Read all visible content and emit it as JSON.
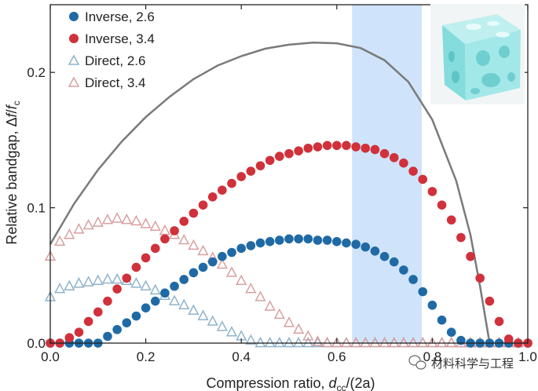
{
  "chart_data": {
    "type": "scatter",
    "xlabel_main": "Compression ratio, ",
    "xlabel_var": "d",
    "xlabel_sub": "cc",
    "xlabel_tail": "/(2a)",
    "ylabel_main": "Relative bandgap, Δ",
    "ylabel_var": "f",
    "ylabel_slash": "/",
    "ylabel_var2": "f",
    "ylabel_sub": "c",
    "xlim": [
      0,
      1.0
    ],
    "ylim": [
      0,
      0.25
    ],
    "x_ticks": [
      0.0,
      0.2,
      0.4,
      0.6,
      0.8,
      1.0
    ],
    "x_tick_labels": [
      "0.0",
      "0.2",
      "0.4",
      "0.6",
      "0.8",
      "1.0"
    ],
    "y_ticks": [
      0.0,
      0.1,
      0.2
    ],
    "y_tick_labels": [
      "0.0",
      "0.1",
      "0.2"
    ],
    "highlight_band": [
      0.632,
      0.778
    ],
    "legend_position": "top-left",
    "series": [
      {
        "name": "Inverse, 2.6",
        "marker": "circle",
        "filled": true,
        "color": "#1f6aa5",
        "x": [
          0.0,
          0.02,
          0.04,
          0.06,
          0.08,
          0.1,
          0.12,
          0.14,
          0.16,
          0.18,
          0.2,
          0.22,
          0.24,
          0.26,
          0.28,
          0.3,
          0.32,
          0.34,
          0.36,
          0.38,
          0.4,
          0.42,
          0.44,
          0.46,
          0.48,
          0.5,
          0.52,
          0.54,
          0.56,
          0.58,
          0.6,
          0.62,
          0.64,
          0.66,
          0.68,
          0.7,
          0.72,
          0.74,
          0.76,
          0.78,
          0.8,
          0.82,
          0.84,
          0.86,
          0.88,
          0.9,
          0.92,
          0.94,
          0.96,
          0.98,
          1.0
        ],
        "y": [
          0.0,
          0.0,
          0.0,
          0.0,
          0.0,
          0.0,
          0.005,
          0.01,
          0.015,
          0.02,
          0.026,
          0.031,
          0.037,
          0.042,
          0.047,
          0.052,
          0.056,
          0.06,
          0.064,
          0.067,
          0.07,
          0.072,
          0.074,
          0.075,
          0.076,
          0.077,
          0.077,
          0.077,
          0.076,
          0.076,
          0.075,
          0.074,
          0.073,
          0.071,
          0.068,
          0.064,
          0.06,
          0.054,
          0.047,
          0.038,
          0.028,
          0.017,
          0.008,
          0.002,
          0.0,
          0.0,
          0.0,
          0.0,
          0.0,
          0.0,
          0.0
        ]
      },
      {
        "name": "Inverse, 3.4",
        "marker": "circle",
        "filled": true,
        "color": "#d0313a",
        "x": [
          0.0,
          0.02,
          0.04,
          0.06,
          0.08,
          0.1,
          0.12,
          0.14,
          0.16,
          0.18,
          0.2,
          0.22,
          0.24,
          0.26,
          0.28,
          0.3,
          0.32,
          0.34,
          0.36,
          0.38,
          0.4,
          0.42,
          0.44,
          0.46,
          0.48,
          0.5,
          0.52,
          0.54,
          0.56,
          0.58,
          0.6,
          0.62,
          0.64,
          0.66,
          0.68,
          0.7,
          0.72,
          0.74,
          0.76,
          0.78,
          0.8,
          0.82,
          0.84,
          0.86,
          0.88,
          0.9,
          0.92,
          0.94,
          0.96,
          0.98,
          1.0
        ],
        "y": [
          0.0,
          0.0,
          0.004,
          0.008,
          0.016,
          0.023,
          0.031,
          0.04,
          0.048,
          0.056,
          0.063,
          0.07,
          0.077,
          0.083,
          0.09,
          0.096,
          0.102,
          0.108,
          0.113,
          0.118,
          0.123,
          0.127,
          0.131,
          0.135,
          0.138,
          0.14,
          0.142,
          0.144,
          0.145,
          0.146,
          0.146,
          0.146,
          0.145,
          0.144,
          0.143,
          0.14,
          0.137,
          0.133,
          0.127,
          0.121,
          0.112,
          0.102,
          0.091,
          0.078,
          0.064,
          0.048,
          0.031,
          0.016,
          0.003,
          0.0,
          0.0
        ]
      },
      {
        "name": "Direct, 2.6",
        "marker": "triangle",
        "filled": false,
        "color": "#8fb3cc",
        "x": [
          0.0,
          0.02,
          0.04,
          0.06,
          0.08,
          0.1,
          0.12,
          0.14,
          0.16,
          0.18,
          0.2,
          0.22,
          0.24,
          0.26,
          0.28,
          0.3,
          0.32,
          0.34,
          0.36,
          0.38,
          0.4,
          0.42,
          0.44,
          0.46,
          0.48,
          0.5,
          0.52,
          0.54,
          0.56,
          0.58,
          0.6,
          0.62,
          0.64,
          0.66,
          0.68,
          0.7,
          0.72,
          0.74,
          0.76,
          0.78,
          0.8,
          0.82,
          0.84,
          0.86,
          0.88,
          0.9,
          0.92,
          0.94,
          0.96,
          0.98
        ],
        "y": [
          0.034,
          0.04,
          0.042,
          0.044,
          0.045,
          0.046,
          0.047,
          0.047,
          0.046,
          0.044,
          0.042,
          0.039,
          0.035,
          0.031,
          0.028,
          0.024,
          0.02,
          0.016,
          0.012,
          0.008,
          0.005,
          0.002,
          0.0,
          0.0,
          0.0,
          0.0,
          0.0,
          0.0,
          0.0,
          0.0,
          0.0,
          0.0,
          0.0,
          0.0,
          0.0,
          0.0,
          0.0,
          0.0,
          0.0,
          0.0,
          0.0,
          0.0,
          0.0,
          0.0,
          0.0,
          0.0,
          0.0,
          0.0,
          0.0,
          0.0
        ]
      },
      {
        "name": "Direct, 3.4",
        "marker": "triangle",
        "filled": false,
        "color": "#d9a0a0",
        "x": [
          0.0,
          0.02,
          0.04,
          0.06,
          0.08,
          0.1,
          0.12,
          0.14,
          0.16,
          0.18,
          0.2,
          0.22,
          0.24,
          0.26,
          0.28,
          0.3,
          0.32,
          0.34,
          0.36,
          0.38,
          0.4,
          0.42,
          0.44,
          0.46,
          0.48,
          0.5,
          0.52,
          0.54,
          0.56,
          0.58,
          0.6,
          0.62,
          0.64,
          0.66,
          0.68,
          0.7,
          0.72,
          0.74,
          0.76,
          0.78,
          0.8,
          0.82,
          0.84,
          0.86,
          0.88,
          0.9,
          0.92,
          0.94,
          0.96,
          0.98
        ],
        "y": [
          0.064,
          0.075,
          0.08,
          0.084,
          0.087,
          0.089,
          0.091,
          0.092,
          0.091,
          0.09,
          0.088,
          0.086,
          0.083,
          0.08,
          0.076,
          0.072,
          0.068,
          0.063,
          0.058,
          0.052,
          0.046,
          0.04,
          0.034,
          0.027,
          0.021,
          0.015,
          0.01,
          0.005,
          0.001,
          0.0,
          0.0,
          0.0,
          0.0,
          0.0,
          0.0,
          0.0,
          0.0,
          0.0,
          0.0,
          0.0,
          0.0,
          0.0,
          0.0,
          0.0,
          0.0,
          0.0,
          0.0,
          0.0,
          0.0,
          0.0
        ]
      }
    ],
    "curve": {
      "color": "#7a7a7a",
      "x": [
        0.0,
        0.05,
        0.1,
        0.15,
        0.2,
        0.25,
        0.3,
        0.35,
        0.4,
        0.45,
        0.5,
        0.55,
        0.6,
        0.65,
        0.7,
        0.75,
        0.8,
        0.85,
        0.88,
        0.9,
        0.92
      ],
      "y": [
        0.073,
        0.103,
        0.128,
        0.149,
        0.167,
        0.182,
        0.195,
        0.205,
        0.212,
        0.2175,
        0.2205,
        0.222,
        0.2215,
        0.218,
        0.209,
        0.193,
        0.165,
        0.12,
        0.08,
        0.042,
        0.0
      ]
    }
  },
  "watermark": {
    "text": "材料科学与工程"
  },
  "colors": {
    "band": "#cfe4fb",
    "axis": "#222222"
  }
}
